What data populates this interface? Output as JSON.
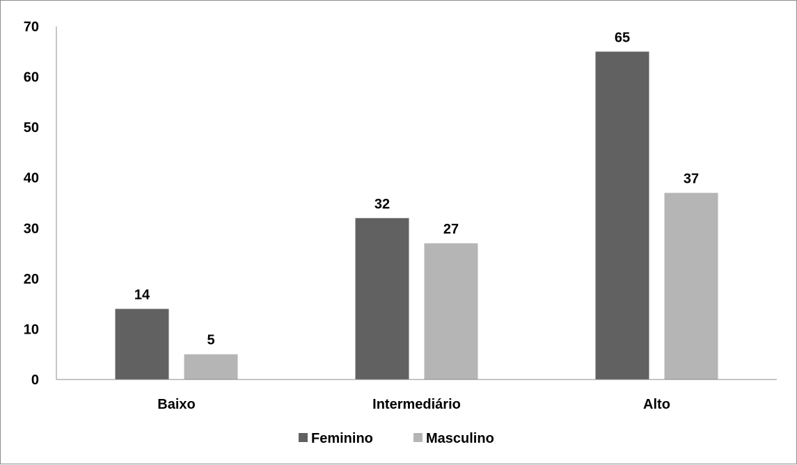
{
  "chart_data": {
    "type": "bar",
    "categories": [
      "Baixo",
      "Intermediário",
      "Alto"
    ],
    "series": [
      {
        "name": "Feminino",
        "values": [
          14,
          32,
          65
        ],
        "color": "#616161"
      },
      {
        "name": "Masculino",
        "values": [
          5,
          27,
          37
        ],
        "color": "#b5b5b5"
      }
    ],
    "ylim": [
      0,
      70
    ],
    "yticks": [
      0,
      10,
      20,
      30,
      40,
      50,
      60,
      70
    ],
    "grid": false,
    "legend": "bottom",
    "data_labels": true,
    "axis_color": "#8c8c8c"
  }
}
